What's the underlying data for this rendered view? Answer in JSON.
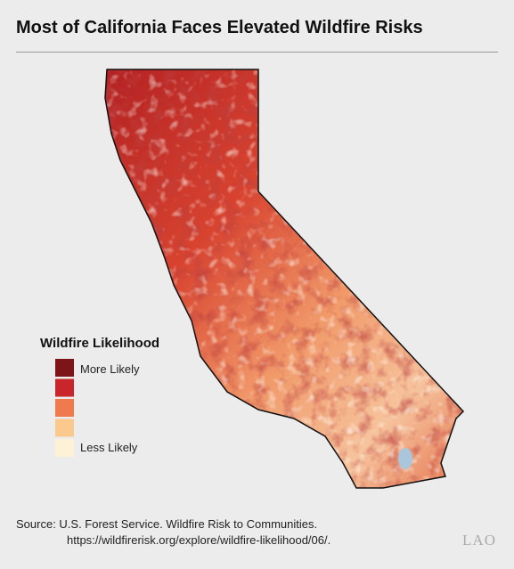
{
  "header": {
    "title": "Most of California Faces Elevated Wildfire Risks"
  },
  "legend": {
    "title": "Wildfire Likelihood",
    "top_label": "More Likely",
    "bottom_label": "Less Likely",
    "colors": [
      "#7d1518",
      "#c8262a",
      "#ee7a4e",
      "#fbc98d",
      "#fdf1d6"
    ]
  },
  "source": {
    "line1": "Source: U.S. Forest Service. Wildfire Risk to Communities.",
    "line2": "https://wildfirerisk.org/explore/wildfire-likelihood/06/."
  },
  "logo": "LAO"
}
